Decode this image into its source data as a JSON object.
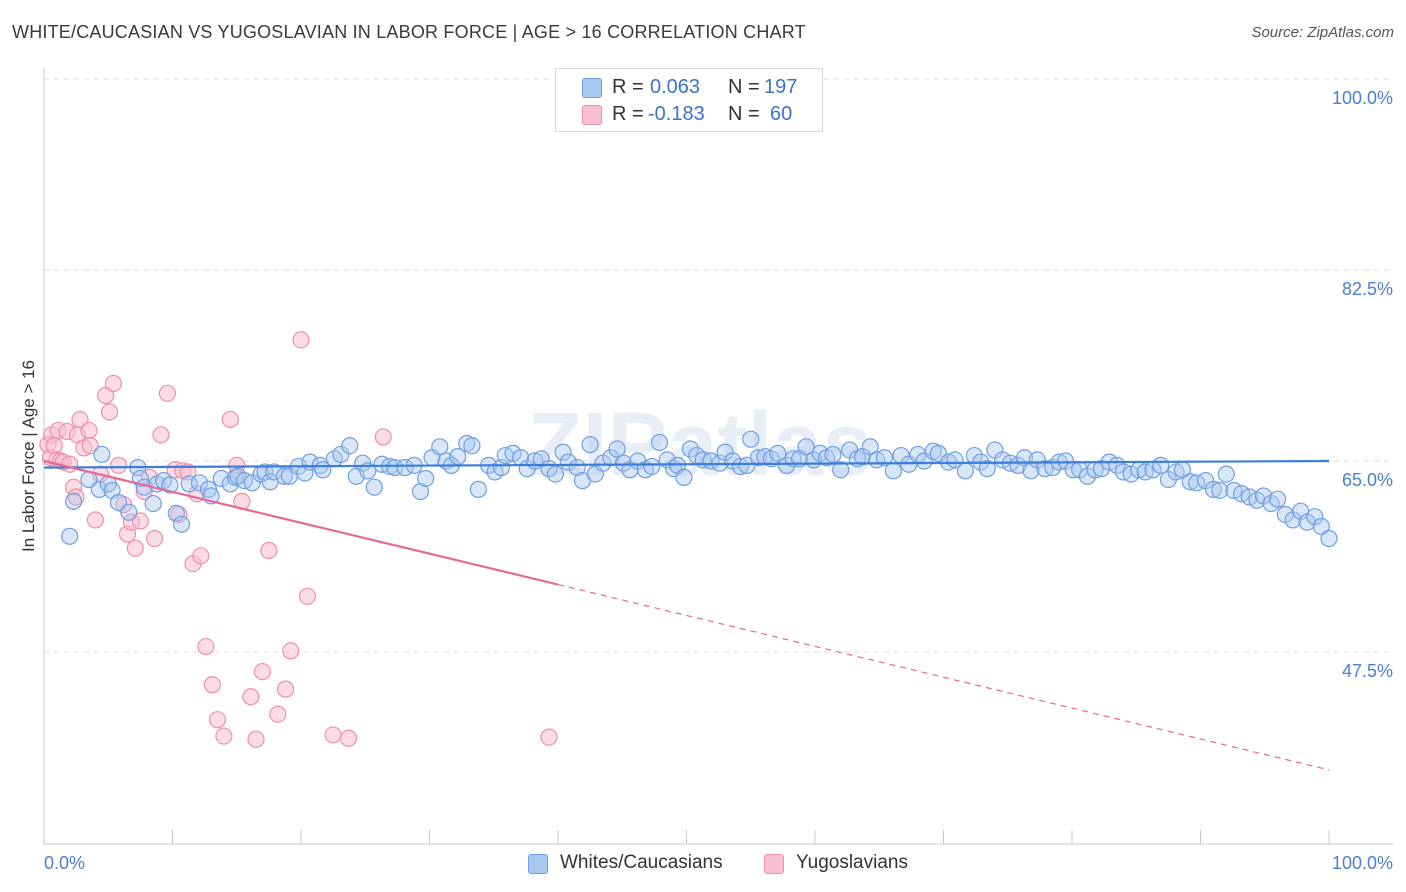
{
  "header": {
    "title": "WHITE/CAUCASIAN VS YUGOSLAVIAN IN LABOR FORCE | AGE > 16 CORRELATION CHART",
    "source": "Source: ZipAtlas.com"
  },
  "stats": [
    {
      "r_label": "R =",
      "r_value": "0.063",
      "n_label": "N =",
      "n_value": "197",
      "color": "#a8c8f0",
      "border": "#6f9fe0"
    },
    {
      "r_label": "R =",
      "r_value": "-0.183",
      "n_label": "N =",
      "n_value": "60",
      "color": "#f8c0d0",
      "border": "#ee8fab"
    }
  ],
  "legend": {
    "items": [
      {
        "label": "Whites/Caucasians",
        "color": "#a8c8f0",
        "border": "#6f9fe0"
      },
      {
        "label": "Yugoslavians",
        "color": "#f8c0d0",
        "border": "#ee8fab"
      }
    ]
  },
  "chart_data": {
    "type": "scatter",
    "title": "WHITE/CAUCASIAN VS YUGOSLAVIAN IN LABOR FORCE | AGE > 16 CORRELATION CHART",
    "xlabel": "",
    "ylabel": "In Labor Force | Age > 16",
    "xlim": [
      0,
      100
    ],
    "ylim": [
      30,
      100
    ],
    "x_tick_labels": [
      "0.0%",
      "100.0%"
    ],
    "y_ticks": [
      47.5,
      65.0,
      82.5,
      100.0
    ],
    "y_tick_labels": [
      "47.5%",
      "65.0%",
      "82.5%",
      "100.0%"
    ],
    "grid": true,
    "legend_position": "bottom-center",
    "watermark": "ZIPatlas",
    "colors": {
      "blue_fill": "#a8c8f0",
      "blue_stroke": "#6f9fe0",
      "blue_line": "#3b7dd8",
      "pink_fill": "#f8c0d0",
      "pink_stroke": "#ee8fab",
      "pink_line": "#e46a95"
    },
    "series": [
      {
        "name": "Whites/Caucasians",
        "trend": {
          "x": [
            0,
            100
          ],
          "y": [
            64.4,
            65.0
          ],
          "dashed_from": null
        },
        "points": [
          [
            2,
            58.1
          ],
          [
            2.3,
            61.3
          ],
          [
            3.5,
            63.3
          ],
          [
            4.3,
            62.4
          ],
          [
            4.5,
            65.6
          ],
          [
            5,
            62.9
          ],
          [
            5.3,
            62.3
          ],
          [
            5.8,
            61.2
          ],
          [
            6.6,
            60.3
          ],
          [
            7.3,
            64.4
          ],
          [
            7.5,
            63.4
          ],
          [
            7.8,
            62.6
          ],
          [
            8.5,
            61.1
          ],
          [
            8.8,
            62.9
          ],
          [
            9.3,
            63.2
          ],
          [
            9.8,
            62.8
          ],
          [
            10.3,
            60.2
          ],
          [
            10.7,
            59.2
          ],
          [
            11.3,
            62.9
          ],
          [
            12.1,
            63.0
          ],
          [
            12.8,
            62.4
          ],
          [
            13,
            61.8
          ],
          [
            13.8,
            63.4
          ],
          [
            14.5,
            62.9
          ],
          [
            14.9,
            63.5
          ],
          [
            15.1,
            63.6
          ],
          [
            15.6,
            63.2
          ],
          [
            16.2,
            63.0
          ],
          [
            16.9,
            63.8
          ],
          [
            17.2,
            64.0
          ],
          [
            17.6,
            63.1
          ],
          [
            17.9,
            64.0
          ],
          [
            18.7,
            63.6
          ],
          [
            19.1,
            63.6
          ],
          [
            19.8,
            64.5
          ],
          [
            20.3,
            63.9
          ],
          [
            20.7,
            64.9
          ],
          [
            21.5,
            64.6
          ],
          [
            21.7,
            64.2
          ],
          [
            22.6,
            65.2
          ],
          [
            23.1,
            65.6
          ],
          [
            23.8,
            66.4
          ],
          [
            24.3,
            63.6
          ],
          [
            24.8,
            64.8
          ],
          [
            25.2,
            64.1
          ],
          [
            25.7,
            62.6
          ],
          [
            26.3,
            64.7
          ],
          [
            26.9,
            64.5
          ],
          [
            27.3,
            64.4
          ],
          [
            28.1,
            64.4
          ],
          [
            28.8,
            64.6
          ],
          [
            29.3,
            62.2
          ],
          [
            29.7,
            63.4
          ],
          [
            30.2,
            65.3
          ],
          [
            30.8,
            66.3
          ],
          [
            31.3,
            65.0
          ],
          [
            31.7,
            64.6
          ],
          [
            32.2,
            65.4
          ],
          [
            32.9,
            66.6
          ],
          [
            33.3,
            66.4
          ],
          [
            33.8,
            62.4
          ],
          [
            34.6,
            64.6
          ],
          [
            35.1,
            64.0
          ],
          [
            35.6,
            64.4
          ],
          [
            35.9,
            65.5
          ],
          [
            36.5,
            65.7
          ],
          [
            37.1,
            65.3
          ],
          [
            37.6,
            64.3
          ],
          [
            38.2,
            65.0
          ],
          [
            38.7,
            65.2
          ],
          [
            39.3,
            64.3
          ],
          [
            39.8,
            63.8
          ],
          [
            40.4,
            65.8
          ],
          [
            40.8,
            64.9
          ],
          [
            41.5,
            64.4
          ],
          [
            41.9,
            63.2
          ],
          [
            42.5,
            66.5
          ],
          [
            42.9,
            63.8
          ],
          [
            43.5,
            64.8
          ],
          [
            44.1,
            65.3
          ],
          [
            44.6,
            66.1
          ],
          [
            45.1,
            64.8
          ],
          [
            45.6,
            64.2
          ],
          [
            46.2,
            65.0
          ],
          [
            46.8,
            64.2
          ],
          [
            47.3,
            64.5
          ],
          [
            47.9,
            66.7
          ],
          [
            48.5,
            65.1
          ],
          [
            49.0,
            64.3
          ],
          [
            49.3,
            64.6
          ],
          [
            49.8,
            63.5
          ],
          [
            50.3,
            66.1
          ],
          [
            50.8,
            65.5
          ],
          [
            51.3,
            65.1
          ],
          [
            51.9,
            65.0
          ],
          [
            52.6,
            64.8
          ],
          [
            53.0,
            65.8
          ],
          [
            53.6,
            65.0
          ],
          [
            54.2,
            64.5
          ],
          [
            54.7,
            64.6
          ],
          [
            55.0,
            67.0
          ],
          [
            55.6,
            65.3
          ],
          [
            56.1,
            65.4
          ],
          [
            56.6,
            65.2
          ],
          [
            57.1,
            65.7
          ],
          [
            57.8,
            64.6
          ],
          [
            58.3,
            65.2
          ],
          [
            58.8,
            65.2
          ],
          [
            59.3,
            66.3
          ],
          [
            59.9,
            65.1
          ],
          [
            60.4,
            65.7
          ],
          [
            60.9,
            65.3
          ],
          [
            61.4,
            65.6
          ],
          [
            62.0,
            64.2
          ],
          [
            62.7,
            66.0
          ],
          [
            63.3,
            65.2
          ],
          [
            63.7,
            65.4
          ],
          [
            64.3,
            66.3
          ],
          [
            64.8,
            65.1
          ],
          [
            65.4,
            65.3
          ],
          [
            66.1,
            64.1
          ],
          [
            66.7,
            65.5
          ],
          [
            67.3,
            64.7
          ],
          [
            68.0,
            65.6
          ],
          [
            68.5,
            65.0
          ],
          [
            69.2,
            65.9
          ],
          [
            69.6,
            65.7
          ],
          [
            70.4,
            64.9
          ],
          [
            70.9,
            65.1
          ],
          [
            71.7,
            64.1
          ],
          [
            72.4,
            65.5
          ],
          [
            72.9,
            64.9
          ],
          [
            73.4,
            64.3
          ],
          [
            74.0,
            66.0
          ],
          [
            74.6,
            65.1
          ],
          [
            75.2,
            64.8
          ],
          [
            75.8,
            64.6
          ],
          [
            76.3,
            65.3
          ],
          [
            76.8,
            64.1
          ],
          [
            77.3,
            65.1
          ],
          [
            77.9,
            64.3
          ],
          [
            78.5,
            64.4
          ],
          [
            79.0,
            64.9
          ],
          [
            79.5,
            65.0
          ],
          [
            80.1,
            64.2
          ],
          [
            80.6,
            64.2
          ],
          [
            81.2,
            63.6
          ],
          [
            81.8,
            64.2
          ],
          [
            82.3,
            64.3
          ],
          [
            82.9,
            64.9
          ],
          [
            83.5,
            64.6
          ],
          [
            84.0,
            64.0
          ],
          [
            84.6,
            63.8
          ],
          [
            85.2,
            64.2
          ],
          [
            85.7,
            64.0
          ],
          [
            86.3,
            64.2
          ],
          [
            86.9,
            64.6
          ],
          [
            87.5,
            63.3
          ],
          [
            88.1,
            64.0
          ],
          [
            88.6,
            64.2
          ],
          [
            89.2,
            63.1
          ],
          [
            89.7,
            63.0
          ],
          [
            90.4,
            63.2
          ],
          [
            91.0,
            62.4
          ],
          [
            91.5,
            62.3
          ],
          [
            92.0,
            63.8
          ],
          [
            92.6,
            62.3
          ],
          [
            93.2,
            62.0
          ],
          [
            93.8,
            61.7
          ],
          [
            94.4,
            61.4
          ],
          [
            94.9,
            61.8
          ],
          [
            95.5,
            61.1
          ],
          [
            96.0,
            61.5
          ],
          [
            96.6,
            60.1
          ],
          [
            97.2,
            59.6
          ],
          [
            97.8,
            60.4
          ],
          [
            98.3,
            59.4
          ],
          [
            98.9,
            59.9
          ],
          [
            99.4,
            59.0
          ],
          [
            100,
            57.9
          ]
        ]
      },
      {
        "name": "Yugoslavians",
        "trend": {
          "x": [
            0,
            100
          ],
          "y": [
            65.0,
            36.7
          ],
          "solid_until_x": 40.0
        },
        "points": [
          [
            0.3,
            66.5
          ],
          [
            0.5,
            65.3
          ],
          [
            0.6,
            67.4
          ],
          [
            0.8,
            66.4
          ],
          [
            1.0,
            65.1
          ],
          [
            1.1,
            67.8
          ],
          [
            1.3,
            65.0
          ],
          [
            1.5,
            64.9
          ],
          [
            1.8,
            67.7
          ],
          [
            2.0,
            64.7
          ],
          [
            2.3,
            62.6
          ],
          [
            2.5,
            61.7
          ],
          [
            2.6,
            67.4
          ],
          [
            2.8,
            68.8
          ],
          [
            3.1,
            66.2
          ],
          [
            3.5,
            67.8
          ],
          [
            3.6,
            66.4
          ],
          [
            4.0,
            59.6
          ],
          [
            4.4,
            63.8
          ],
          [
            4.8,
            71.0
          ],
          [
            5.1,
            69.5
          ],
          [
            5.4,
            72.1
          ],
          [
            5.8,
            64.6
          ],
          [
            6.2,
            61.0
          ],
          [
            6.5,
            58.3
          ],
          [
            6.8,
            59.4
          ],
          [
            7.1,
            57.0
          ],
          [
            7.5,
            59.5
          ],
          [
            7.8,
            62.2
          ],
          [
            8.2,
            63.5
          ],
          [
            8.6,
            57.9
          ],
          [
            9.1,
            67.4
          ],
          [
            9.6,
            71.2
          ],
          [
            10.2,
            64.2
          ],
          [
            10.5,
            60.1
          ],
          [
            10.8,
            64.1
          ],
          [
            11.2,
            64.0
          ],
          [
            11.6,
            55.6
          ],
          [
            11.9,
            62.0
          ],
          [
            12.2,
            56.3
          ],
          [
            12.6,
            48.0
          ],
          [
            13.1,
            44.5
          ],
          [
            13.5,
            41.3
          ],
          [
            14.0,
            39.8
          ],
          [
            14.5,
            68.8
          ],
          [
            15.0,
            64.6
          ],
          [
            15.4,
            61.3
          ],
          [
            16.1,
            43.4
          ],
          [
            16.5,
            39.5
          ],
          [
            17.0,
            45.7
          ],
          [
            17.5,
            56.8
          ],
          [
            18.2,
            41.8
          ],
          [
            18.8,
            44.1
          ],
          [
            19.2,
            47.6
          ],
          [
            20.0,
            76.1
          ],
          [
            20.5,
            52.6
          ],
          [
            22.5,
            39.9
          ],
          [
            23.7,
            39.6
          ],
          [
            26.4,
            67.2
          ],
          [
            39.3,
            39.7
          ]
        ]
      }
    ]
  }
}
